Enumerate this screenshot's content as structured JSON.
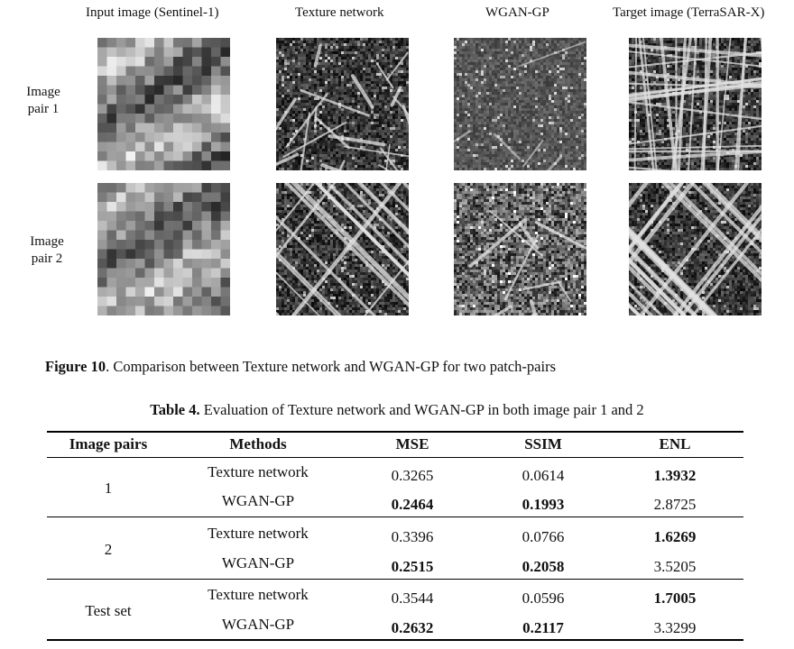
{
  "figure": {
    "columns": [
      "Input image (Sentinel-1)",
      "Texture network",
      "WGAN-GP",
      "Target image (TerraSAR-X)"
    ],
    "rows": [
      {
        "label_line1": "Image",
        "label_line2": "pair 1"
      },
      {
        "label_line1": "Image",
        "label_line2": "pair 2"
      }
    ],
    "caption_prefix": "Figure 10",
    "caption_text": ". Comparison between Texture network and WGAN-GP for two patch-pairs"
  },
  "table": {
    "caption_prefix": "Table 4.",
    "caption_text": " Evaluation of Texture network and WGAN-GP in both image pair 1 and 2",
    "headers": [
      "Image pairs",
      "Methods",
      "MSE",
      "SSIM",
      "ENL"
    ],
    "groups": [
      {
        "name": "1",
        "rows": [
          {
            "method": "Texture network",
            "mse": "0.3265",
            "ssim": "0.0614",
            "enl": "1.3932"
          },
          {
            "method": "WGAN-GP",
            "mse": "0.2464",
            "ssim": "0.1993",
            "enl": "2.8725"
          }
        ]
      },
      {
        "name": "2",
        "rows": [
          {
            "method": "Texture network",
            "mse": "0.3396",
            "ssim": "0.0766",
            "enl": "1.6269"
          },
          {
            "method": "WGAN-GP",
            "mse": "0.2515",
            "ssim": "0.2058",
            "enl": "3.5205"
          }
        ]
      },
      {
        "name": "Test set",
        "rows": [
          {
            "method": "Texture network",
            "mse": "0.3544",
            "ssim": "0.0596",
            "enl": "1.7005"
          },
          {
            "method": "WGAN-GP",
            "mse": "0.2632",
            "ssim": "0.2117",
            "enl": "3.3299"
          }
        ]
      }
    ]
  }
}
